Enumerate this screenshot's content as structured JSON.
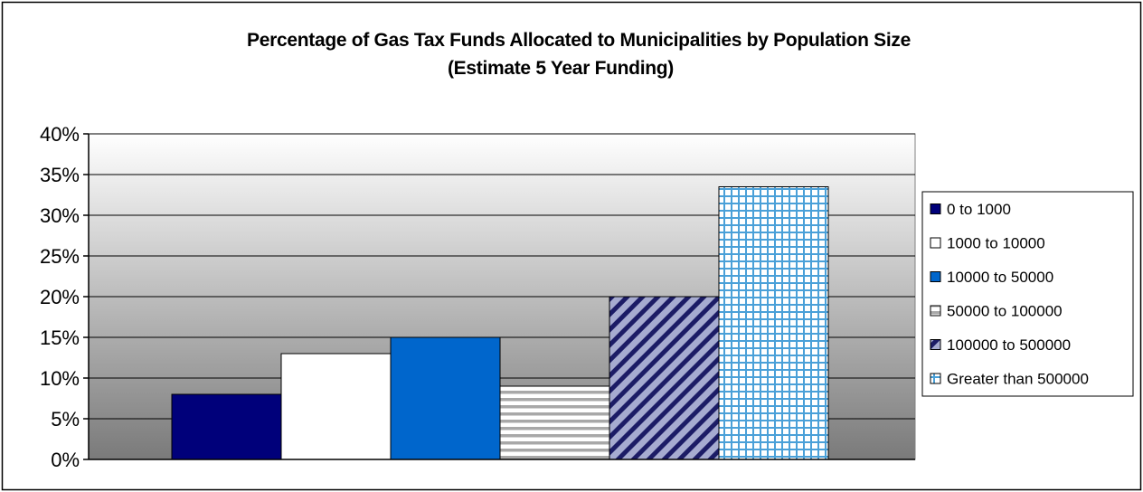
{
  "chart_data": {
    "type": "bar",
    "title": "Percentage of Gas Tax Funds Allocated to Municipalities by Population Size",
    "subtitle": "(Estimate 5 Year Funding)",
    "xlabel": "",
    "ylabel": "",
    "ylim": [
      0,
      0.4
    ],
    "y_ticks": [
      "0%",
      "5%",
      "10%",
      "15%",
      "20%",
      "25%",
      "30%",
      "35%",
      "40%"
    ],
    "grid": true,
    "legend_position": "right",
    "series": [
      {
        "name": "0 to 1000",
        "value": 0.08,
        "fill": "#00007a",
        "pattern": "solid"
      },
      {
        "name": "1000 to 10000",
        "value": 0.13,
        "fill": "#ffffff",
        "pattern": "solid"
      },
      {
        "name": "10000 to 50000",
        "value": 0.15,
        "fill": "#0066cc",
        "pattern": "solid"
      },
      {
        "name": "50000 to 100000",
        "value": 0.09,
        "fill": "#ffffff",
        "pattern": "horizontal-stripes"
      },
      {
        "name": "100000 to 500000",
        "value": 0.2,
        "fill": "#99a0c8",
        "pattern": "diagonal-stripes"
      },
      {
        "name": "Greater than 500000",
        "value": 0.335,
        "fill": "#ffffff",
        "pattern": "grid"
      }
    ]
  }
}
